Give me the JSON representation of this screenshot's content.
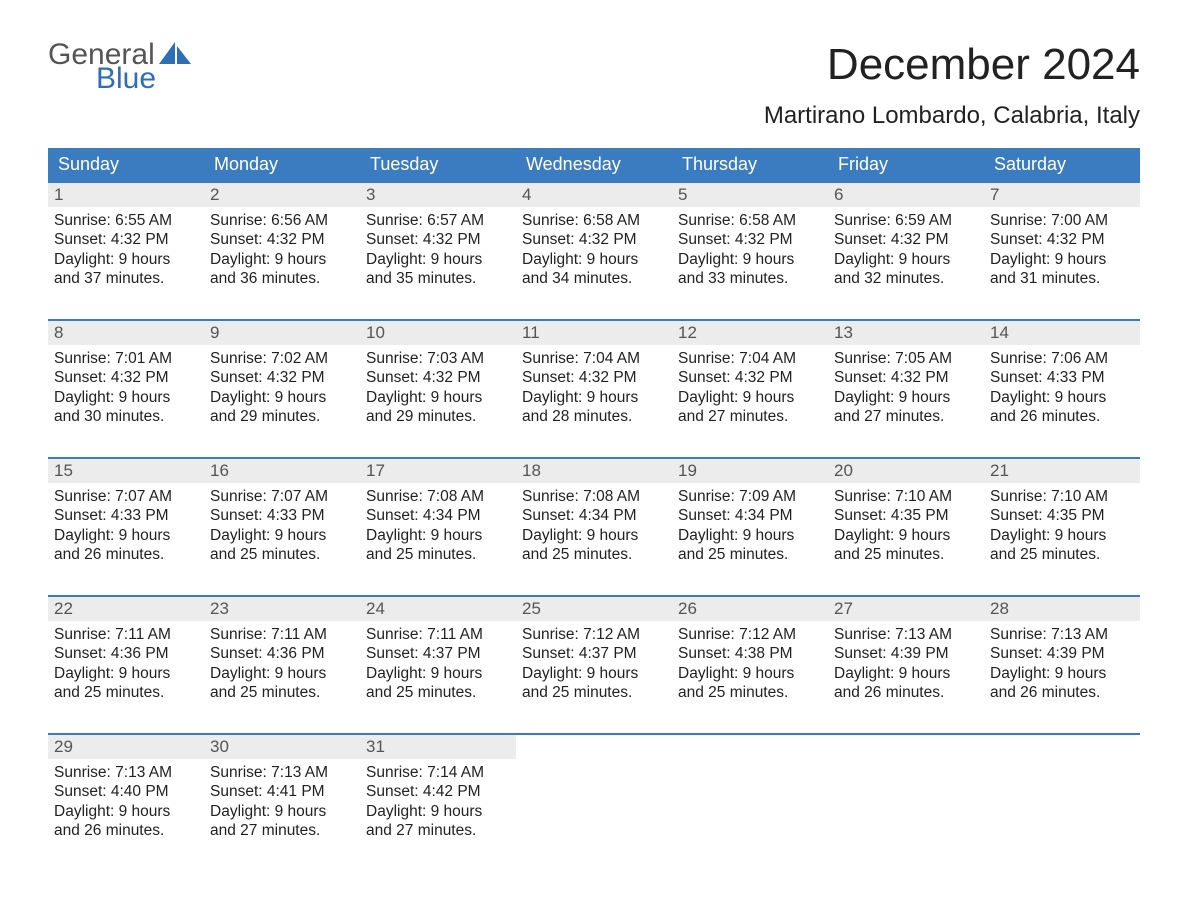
{
  "brand": {
    "word1": "General",
    "word2": "Blue",
    "sail_color": "#2d6fb6",
    "text_gray": "#555555"
  },
  "title": "December 2024",
  "location": "Martirano Lombardo, Calabria, Italy",
  "colors": {
    "header_bg": "#3b7bbf",
    "header_text": "#ffffff",
    "daynum_bg": "#ececec",
    "row_border": "#3b7bbf",
    "body_text": "#222222",
    "page_bg": "#ffffff"
  },
  "weekdays": [
    "Sunday",
    "Monday",
    "Tuesday",
    "Wednesday",
    "Thursday",
    "Friday",
    "Saturday"
  ],
  "weeks": [
    [
      {
        "n": "1",
        "sunrise": "Sunrise: 6:55 AM",
        "sunset": "Sunset: 4:32 PM",
        "d1": "Daylight: 9 hours",
        "d2": "and 37 minutes."
      },
      {
        "n": "2",
        "sunrise": "Sunrise: 6:56 AM",
        "sunset": "Sunset: 4:32 PM",
        "d1": "Daylight: 9 hours",
        "d2": "and 36 minutes."
      },
      {
        "n": "3",
        "sunrise": "Sunrise: 6:57 AM",
        "sunset": "Sunset: 4:32 PM",
        "d1": "Daylight: 9 hours",
        "d2": "and 35 minutes."
      },
      {
        "n": "4",
        "sunrise": "Sunrise: 6:58 AM",
        "sunset": "Sunset: 4:32 PM",
        "d1": "Daylight: 9 hours",
        "d2": "and 34 minutes."
      },
      {
        "n": "5",
        "sunrise": "Sunrise: 6:58 AM",
        "sunset": "Sunset: 4:32 PM",
        "d1": "Daylight: 9 hours",
        "d2": "and 33 minutes."
      },
      {
        "n": "6",
        "sunrise": "Sunrise: 6:59 AM",
        "sunset": "Sunset: 4:32 PM",
        "d1": "Daylight: 9 hours",
        "d2": "and 32 minutes."
      },
      {
        "n": "7",
        "sunrise": "Sunrise: 7:00 AM",
        "sunset": "Sunset: 4:32 PM",
        "d1": "Daylight: 9 hours",
        "d2": "and 31 minutes."
      }
    ],
    [
      {
        "n": "8",
        "sunrise": "Sunrise: 7:01 AM",
        "sunset": "Sunset: 4:32 PM",
        "d1": "Daylight: 9 hours",
        "d2": "and 30 minutes."
      },
      {
        "n": "9",
        "sunrise": "Sunrise: 7:02 AM",
        "sunset": "Sunset: 4:32 PM",
        "d1": "Daylight: 9 hours",
        "d2": "and 29 minutes."
      },
      {
        "n": "10",
        "sunrise": "Sunrise: 7:03 AM",
        "sunset": "Sunset: 4:32 PM",
        "d1": "Daylight: 9 hours",
        "d2": "and 29 minutes."
      },
      {
        "n": "11",
        "sunrise": "Sunrise: 7:04 AM",
        "sunset": "Sunset: 4:32 PM",
        "d1": "Daylight: 9 hours",
        "d2": "and 28 minutes."
      },
      {
        "n": "12",
        "sunrise": "Sunrise: 7:04 AM",
        "sunset": "Sunset: 4:32 PM",
        "d1": "Daylight: 9 hours",
        "d2": "and 27 minutes."
      },
      {
        "n": "13",
        "sunrise": "Sunrise: 7:05 AM",
        "sunset": "Sunset: 4:32 PM",
        "d1": "Daylight: 9 hours",
        "d2": "and 27 minutes."
      },
      {
        "n": "14",
        "sunrise": "Sunrise: 7:06 AM",
        "sunset": "Sunset: 4:33 PM",
        "d1": "Daylight: 9 hours",
        "d2": "and 26 minutes."
      }
    ],
    [
      {
        "n": "15",
        "sunrise": "Sunrise: 7:07 AM",
        "sunset": "Sunset: 4:33 PM",
        "d1": "Daylight: 9 hours",
        "d2": "and 26 minutes."
      },
      {
        "n": "16",
        "sunrise": "Sunrise: 7:07 AM",
        "sunset": "Sunset: 4:33 PM",
        "d1": "Daylight: 9 hours",
        "d2": "and 25 minutes."
      },
      {
        "n": "17",
        "sunrise": "Sunrise: 7:08 AM",
        "sunset": "Sunset: 4:34 PM",
        "d1": "Daylight: 9 hours",
        "d2": "and 25 minutes."
      },
      {
        "n": "18",
        "sunrise": "Sunrise: 7:08 AM",
        "sunset": "Sunset: 4:34 PM",
        "d1": "Daylight: 9 hours",
        "d2": "and 25 minutes."
      },
      {
        "n": "19",
        "sunrise": "Sunrise: 7:09 AM",
        "sunset": "Sunset: 4:34 PM",
        "d1": "Daylight: 9 hours",
        "d2": "and 25 minutes."
      },
      {
        "n": "20",
        "sunrise": "Sunrise: 7:10 AM",
        "sunset": "Sunset: 4:35 PM",
        "d1": "Daylight: 9 hours",
        "d2": "and 25 minutes."
      },
      {
        "n": "21",
        "sunrise": "Sunrise: 7:10 AM",
        "sunset": "Sunset: 4:35 PM",
        "d1": "Daylight: 9 hours",
        "d2": "and 25 minutes."
      }
    ],
    [
      {
        "n": "22",
        "sunrise": "Sunrise: 7:11 AM",
        "sunset": "Sunset: 4:36 PM",
        "d1": "Daylight: 9 hours",
        "d2": "and 25 minutes."
      },
      {
        "n": "23",
        "sunrise": "Sunrise: 7:11 AM",
        "sunset": "Sunset: 4:36 PM",
        "d1": "Daylight: 9 hours",
        "d2": "and 25 minutes."
      },
      {
        "n": "24",
        "sunrise": "Sunrise: 7:11 AM",
        "sunset": "Sunset: 4:37 PM",
        "d1": "Daylight: 9 hours",
        "d2": "and 25 minutes."
      },
      {
        "n": "25",
        "sunrise": "Sunrise: 7:12 AM",
        "sunset": "Sunset: 4:37 PM",
        "d1": "Daylight: 9 hours",
        "d2": "and 25 minutes."
      },
      {
        "n": "26",
        "sunrise": "Sunrise: 7:12 AM",
        "sunset": "Sunset: 4:38 PM",
        "d1": "Daylight: 9 hours",
        "d2": "and 25 minutes."
      },
      {
        "n": "27",
        "sunrise": "Sunrise: 7:13 AM",
        "sunset": "Sunset: 4:39 PM",
        "d1": "Daylight: 9 hours",
        "d2": "and 26 minutes."
      },
      {
        "n": "28",
        "sunrise": "Sunrise: 7:13 AM",
        "sunset": "Sunset: 4:39 PM",
        "d1": "Daylight: 9 hours",
        "d2": "and 26 minutes."
      }
    ],
    [
      {
        "n": "29",
        "sunrise": "Sunrise: 7:13 AM",
        "sunset": "Sunset: 4:40 PM",
        "d1": "Daylight: 9 hours",
        "d2": "and 26 minutes."
      },
      {
        "n": "30",
        "sunrise": "Sunrise: 7:13 AM",
        "sunset": "Sunset: 4:41 PM",
        "d1": "Daylight: 9 hours",
        "d2": "and 27 minutes."
      },
      {
        "n": "31",
        "sunrise": "Sunrise: 7:14 AM",
        "sunset": "Sunset: 4:42 PM",
        "d1": "Daylight: 9 hours",
        "d2": "and 27 minutes."
      },
      null,
      null,
      null,
      null
    ]
  ]
}
